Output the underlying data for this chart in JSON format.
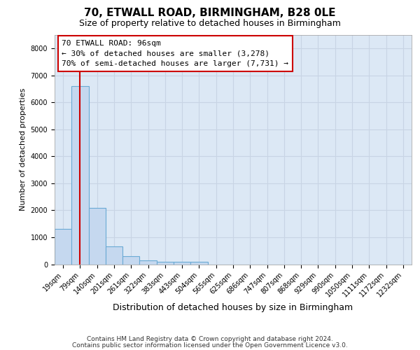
{
  "title1": "70, ETWALL ROAD, BIRMINGHAM, B28 0LE",
  "title2": "Size of property relative to detached houses in Birmingham",
  "xlabel": "Distribution of detached houses by size in Birmingham",
  "ylabel": "Number of detached properties",
  "bin_labels": [
    "19sqm",
    "79sqm",
    "140sqm",
    "201sqm",
    "261sqm",
    "322sqm",
    "383sqm",
    "443sqm",
    "504sqm",
    "565sqm",
    "625sqm",
    "686sqm",
    "747sqm",
    "807sqm",
    "868sqm",
    "929sqm",
    "990sqm",
    "1050sqm",
    "1111sqm",
    "1172sqm",
    "1232sqm"
  ],
  "bar_values": [
    1300,
    6600,
    2100,
    650,
    300,
    150,
    100,
    100,
    100,
    0,
    0,
    0,
    0,
    0,
    0,
    0,
    0,
    0,
    0,
    0,
    0
  ],
  "bar_color": "#c5d8ef",
  "bar_edge_color": "#6aaad4",
  "vline_x": 1.0,
  "annotation_text_line1": "70 ETWALL ROAD: 96sqm",
  "annotation_text_line2": "← 30% of detached houses are smaller (3,278)",
  "annotation_text_line3": "70% of semi-detached houses are larger (7,731) →",
  "annotation_box_facecolor": "#ffffff",
  "annotation_box_edgecolor": "#cc0000",
  "vline_color": "#cc0000",
  "grid_color": "#c8d4e4",
  "plot_bg_color": "#dce8f5",
  "fig_bg_color": "#ffffff",
  "ylim": [
    0,
    8500
  ],
  "yticks": [
    0,
    1000,
    2000,
    3000,
    4000,
    5000,
    6000,
    7000,
    8000
  ],
  "footer1": "Contains HM Land Registry data © Crown copyright and database right 2024.",
  "footer2": "Contains public sector information licensed under the Open Government Licence v3.0.",
  "title1_fontsize": 11,
  "title2_fontsize": 9,
  "ylabel_fontsize": 8,
  "xlabel_fontsize": 9,
  "tick_fontsize": 7,
  "footer_fontsize": 6.5
}
